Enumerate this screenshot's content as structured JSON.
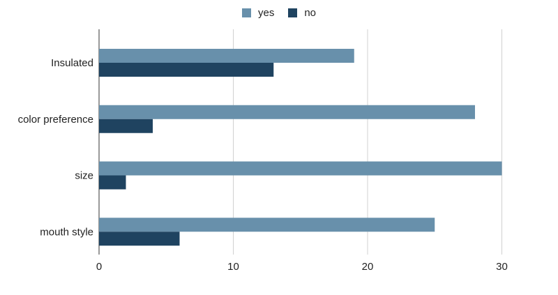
{
  "chart_data": {
    "type": "bar",
    "orientation": "horizontal",
    "categories": [
      "Insulated",
      "color preference",
      "size",
      "mouth style"
    ],
    "series": [
      {
        "name": "yes",
        "values": [
          19,
          28,
          30,
          25
        ],
        "color": "#6890ab"
      },
      {
        "name": "no",
        "values": [
          13,
          4,
          2,
          6
        ],
        "color": "#1f4360"
      }
    ],
    "x_ticks": [
      0,
      10,
      20,
      30
    ],
    "xlim": [
      0,
      32
    ],
    "grid": true,
    "legend_position": "top-center"
  },
  "legend": {
    "yes_label": "yes",
    "no_label": "no"
  }
}
